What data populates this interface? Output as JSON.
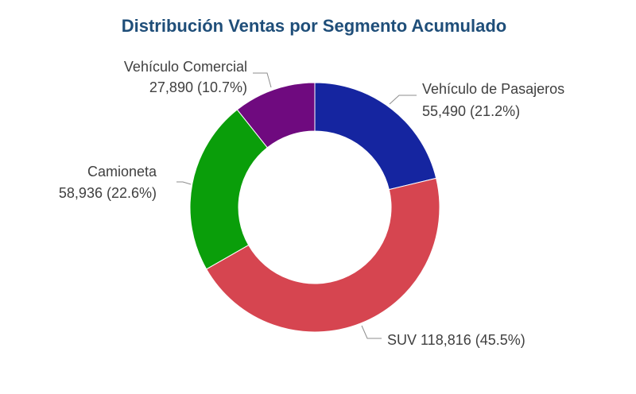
{
  "chart_data": {
    "type": "pie",
    "donut": true,
    "title": "Distribución Ventas por Segmento Acumulado",
    "slices": [
      {
        "name": "Vehículo de Pasajeros",
        "value": 55490,
        "value_label": "55,490",
        "percent_label": "(21.2%)",
        "color": "#1525a0"
      },
      {
        "name": "SUV",
        "value": 118816,
        "value_label": "118,816",
        "percent_label": "(45.5%)",
        "color": "#d64550"
      },
      {
        "name": "Camioneta",
        "value": 58936,
        "value_label": "58,936",
        "percent_label": "(22.6%)",
        "color": "#0a9e0a"
      },
      {
        "name": "Vehículo Comercial",
        "value": 27890,
        "value_label": "27,890",
        "percent_label": "(10.7%)",
        "color": "#6f0a7f"
      }
    ],
    "legend": "none",
    "colors": {
      "title": "#1f4e79",
      "label_text": "#404040",
      "leader_line": "#8c8c8c"
    }
  }
}
